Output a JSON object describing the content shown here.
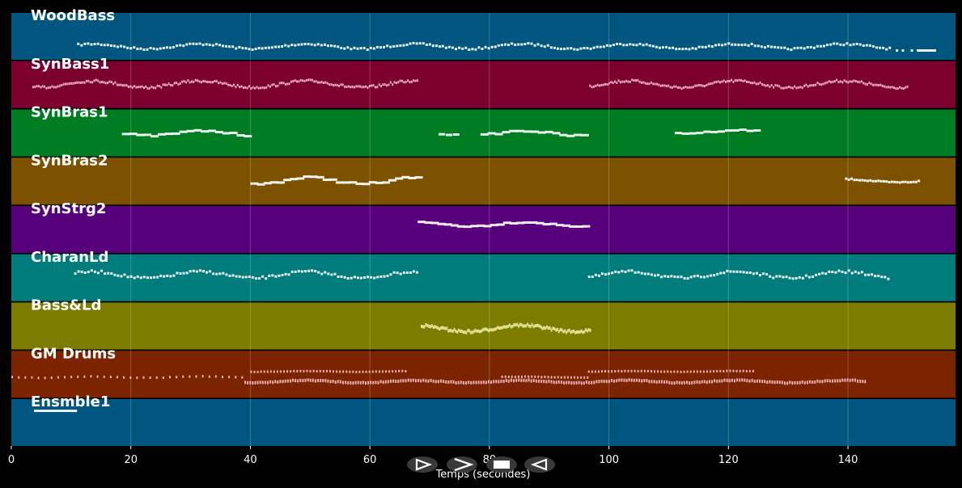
{
  "tracks": [
    {
      "name": "WoodBass",
      "color": "#00567f"
    },
    {
      "name": "SynBass1",
      "color": "#7c002e"
    },
    {
      "name": "SynBras1",
      "color": "#007c23"
    },
    {
      "name": "SynBras2",
      "color": "#7c5200"
    },
    {
      "name": "SynStrg2",
      "color": "#57007c"
    },
    {
      "name": "CharanLd",
      "color": "#007c7c"
    },
    {
      "name": "Bass&Ld",
      "color": "#7c7c00"
    },
    {
      "name": "GM Drums",
      "color": "#7c2400"
    },
    {
      "name": "Ensmble1",
      "color": "#00567f"
    }
  ],
  "x_axis": {
    "label": "Temps (secondes)",
    "ticks": [
      0,
      20,
      40,
      60,
      80,
      100,
      120,
      140
    ],
    "range": [
      0,
      158
    ]
  },
  "controls": [
    {
      "name": "play-button",
      "icon": "play-outline-icon"
    },
    {
      "name": "forward-button",
      "icon": "chevron-right-icon"
    },
    {
      "name": "stop-button",
      "icon": "stop-square-icon"
    },
    {
      "name": "rewind-button",
      "icon": "reverse-triangle-icon"
    }
  ]
}
